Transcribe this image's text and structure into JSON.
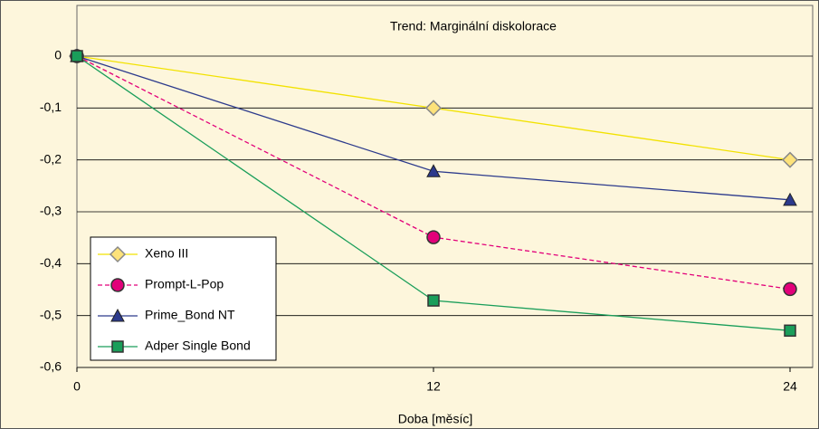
{
  "chart_data": {
    "type": "line",
    "title": "Trend: Marginální diskolorace",
    "x_label": "Doba [měsíc]",
    "x": [
      0,
      12,
      24
    ],
    "xlim": [
      0,
      24
    ],
    "xticks": [
      0,
      12,
      24
    ],
    "ylim": [
      -0.6,
      0
    ],
    "yticks": [
      {
        "value": 0,
        "label": "0"
      },
      {
        "value": -0.1,
        "label": "-0,1"
      },
      {
        "value": -0.2,
        "label": "-0,2"
      },
      {
        "value": -0.3,
        "label": "-0,3"
      },
      {
        "value": -0.4,
        "label": "-0,4"
      },
      {
        "value": -0.5,
        "label": "-0,5"
      },
      {
        "value": -0.6,
        "label": "-0,6"
      }
    ],
    "grid": true,
    "legend": "lower left",
    "series": [
      {
        "name": "Xeno III",
        "color": "#f2e200",
        "marker": "diamond",
        "dash": false,
        "values": [
          0,
          -0.1,
          -0.2
        ]
      },
      {
        "name": "Prompt-L-Pop",
        "color": "#e2007a",
        "marker": "circle",
        "dash": true,
        "values": [
          0,
          -0.349,
          -0.449
        ]
      },
      {
        "name": "Prime_Bond NT",
        "color": "#2c3a8c",
        "marker": "triangle",
        "dash": false,
        "values": [
          0,
          -0.222,
          -0.277
        ]
      },
      {
        "name": "Adper Single Bond",
        "color": "#1a9e5a",
        "marker": "square",
        "dash": false,
        "values": [
          0,
          -0.471,
          -0.529
        ]
      }
    ]
  }
}
